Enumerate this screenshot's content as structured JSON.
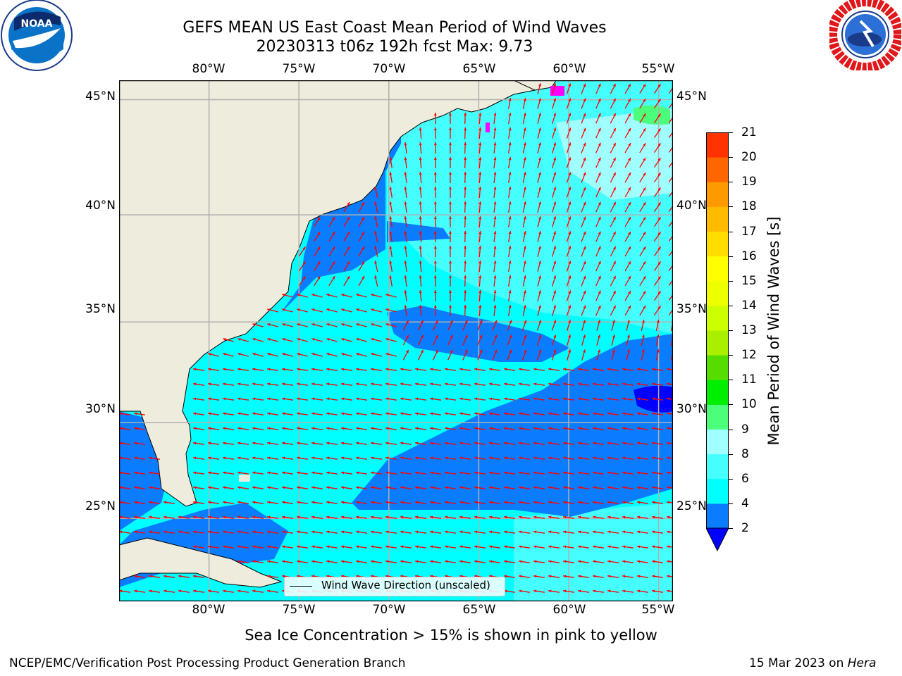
{
  "header": {
    "title_line1": "GEFS MEAN US East Coast Mean Period of Wind Waves",
    "title_line2": "20230313 t06z 192h fcst   Max: 9.73"
  },
  "logos": {
    "noaa_text": "NOAA",
    "noaa_ring_text": "NATIONAL OCEANIC AND ATMOSPHERIC ADMINISTRATION · U.S. DEPARTMENT OF COMMERCE",
    "nws_ring_text": "NATIONAL WEATHER SERVICE"
  },
  "map": {
    "lon_labels": [
      "80°W",
      "75°W",
      "70°W",
      "65°W",
      "60°W",
      "55°W"
    ],
    "lat_labels": [
      "45°N",
      "40°N",
      "35°N",
      "30°N",
      "25°N"
    ],
    "lon_values": [
      -80,
      -75,
      -70,
      -65,
      -60,
      -55
    ],
    "lat_values": [
      45,
      40,
      35,
      30,
      25
    ],
    "extent": {
      "lon_min": -85,
      "lon_max": -54.2,
      "lat_min": 20.5,
      "lat_max": 45.8
    },
    "colors": {
      "land": "#eeecdc",
      "blue_2_4": "#0a7cff",
      "cyan_4_6": "#00ffff",
      "cyan_6_8": "#45ffff",
      "light_8_9": "#a0ffff",
      "green_9_10": "#4cff7a",
      "arrow": "#ff0000",
      "ice": "#ff00ff",
      "grid": "#b0b0b0"
    },
    "legend_label": "Wind Wave Direction (unscaled)"
  },
  "colorbar": {
    "label": "Mean Period of Wind Waves [s]",
    "ticks": [
      "2",
      "4",
      "6",
      "8",
      "9",
      "10",
      "11",
      "12",
      "13",
      "14",
      "15",
      "16",
      "17",
      "18",
      "19",
      "20",
      "21"
    ],
    "colors": [
      "#0a7cff",
      "#00ffff",
      "#45ffff",
      "#a0ffff",
      "#4cff7a",
      "#00ee00",
      "#55dd00",
      "#aaee00",
      "#ccff00",
      "#eeff00",
      "#ffff00",
      "#ffdd00",
      "#ffbb00",
      "#ff9900",
      "#ff6600",
      "#ff3300",
      "#ff0000"
    ],
    "extend_color": "#0000ff"
  },
  "notes": {
    "sea_ice": "Sea Ice Concentration > 15% is shown in pink to yellow",
    "credit": "NCEP/EMC/Verification Post Processing Product Generation Branch",
    "date": "15 Mar 2023 on",
    "machine": "Hera"
  }
}
